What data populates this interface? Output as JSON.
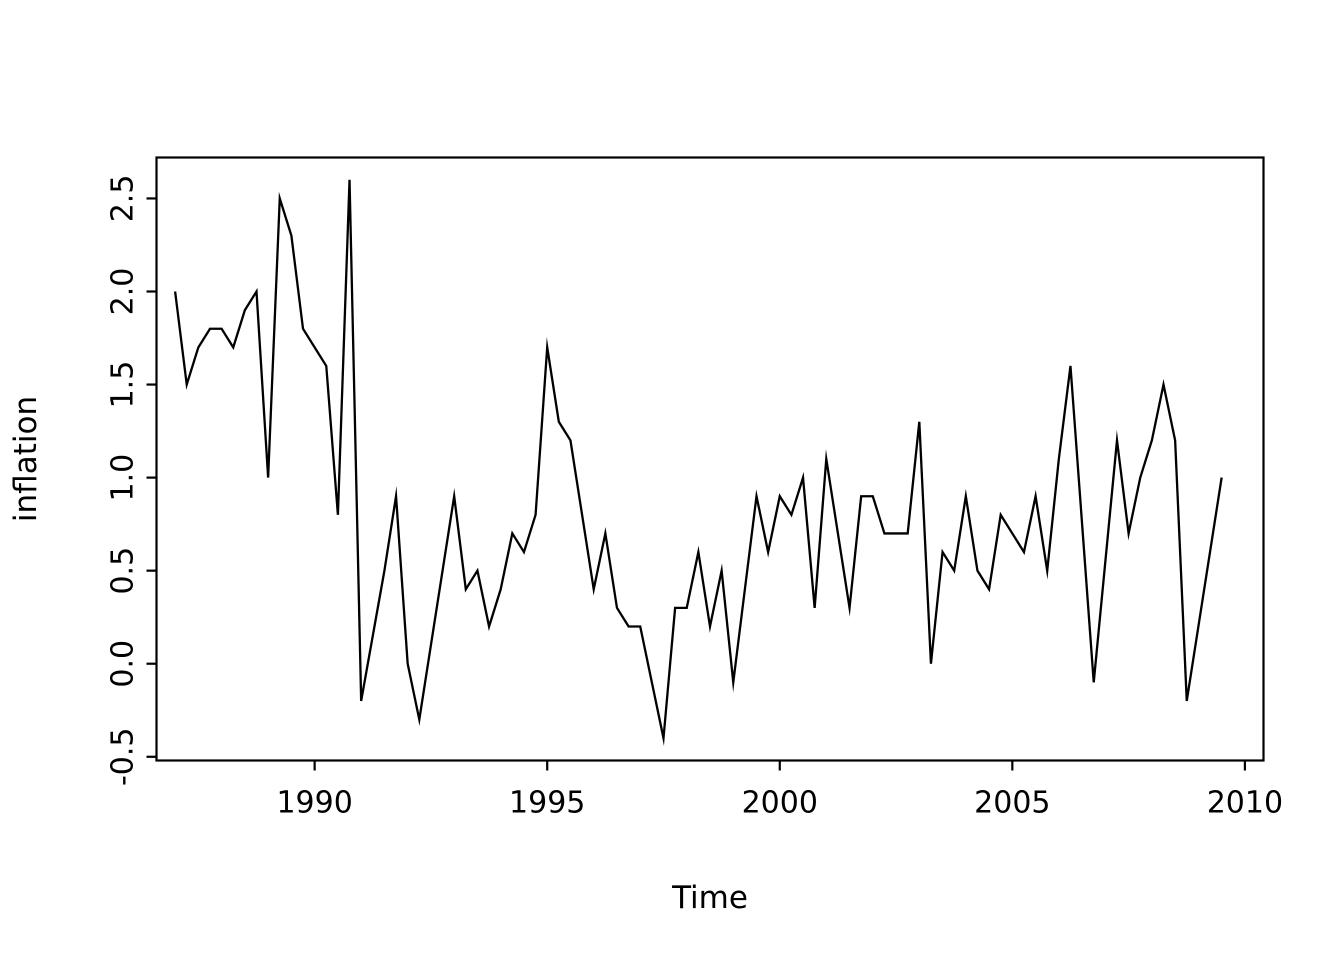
{
  "figure": {
    "background_color": "#ffffff",
    "line_color": "#000000",
    "axis_color": "#000000"
  },
  "chart_data": {
    "type": "line",
    "title": "",
    "xlabel": "Time",
    "ylabel": "inflation",
    "grid": false,
    "legend": "none",
    "series_name": "inflation",
    "x_start": 1987.0,
    "frequency_per_year": 4,
    "x_end": 2009.5,
    "xlim": [
      1986.6,
      2010.4
    ],
    "ylim": [
      -0.52,
      2.72
    ],
    "x_ticks": [
      1990,
      1995,
      2000,
      2005,
      2010
    ],
    "x_tick_labels": [
      "1990",
      "1995",
      "2000",
      "2005",
      "2010"
    ],
    "y_ticks": [
      -0.5,
      0.0,
      0.5,
      1.0,
      1.5,
      2.0,
      2.5
    ],
    "y_tick_labels": [
      "-0.5",
      "0.0",
      "0.5",
      "1.0",
      "1.5",
      "2.0",
      "2.5"
    ],
    "values": [
      2.0,
      1.5,
      1.7,
      1.8,
      1.8,
      1.7,
      1.9,
      2.0,
      1.0,
      2.5,
      2.3,
      1.8,
      1.7,
      1.6,
      0.8,
      2.6,
      -0.2,
      0.15,
      0.5,
      0.9,
      0.0,
      -0.3,
      0.1,
      0.5,
      0.9,
      0.4,
      0.5,
      0.2,
      0.4,
      0.7,
      0.6,
      0.8,
      1.7,
      1.3,
      1.2,
      0.8,
      0.4,
      0.7,
      0.3,
      0.2,
      0.2,
      -0.1,
      -0.4,
      0.3,
      0.3,
      0.6,
      0.2,
      0.5,
      -0.1,
      0.4,
      0.9,
      0.6,
      0.9,
      0.8,
      1.0,
      0.3,
      1.1,
      0.7,
      0.3,
      0.9,
      0.9,
      0.7,
      0.7,
      0.7,
      1.3,
      0.0,
      0.6,
      0.5,
      0.9,
      0.5,
      0.4,
      0.8,
      0.7,
      0.6,
      0.9,
      0.5,
      1.1,
      1.6,
      0.75,
      -0.1,
      0.55,
      1.2,
      0.7,
      1.0,
      1.2,
      1.5,
      1.2,
      -0.2,
      0.2,
      0.6,
      1.0
    ]
  }
}
